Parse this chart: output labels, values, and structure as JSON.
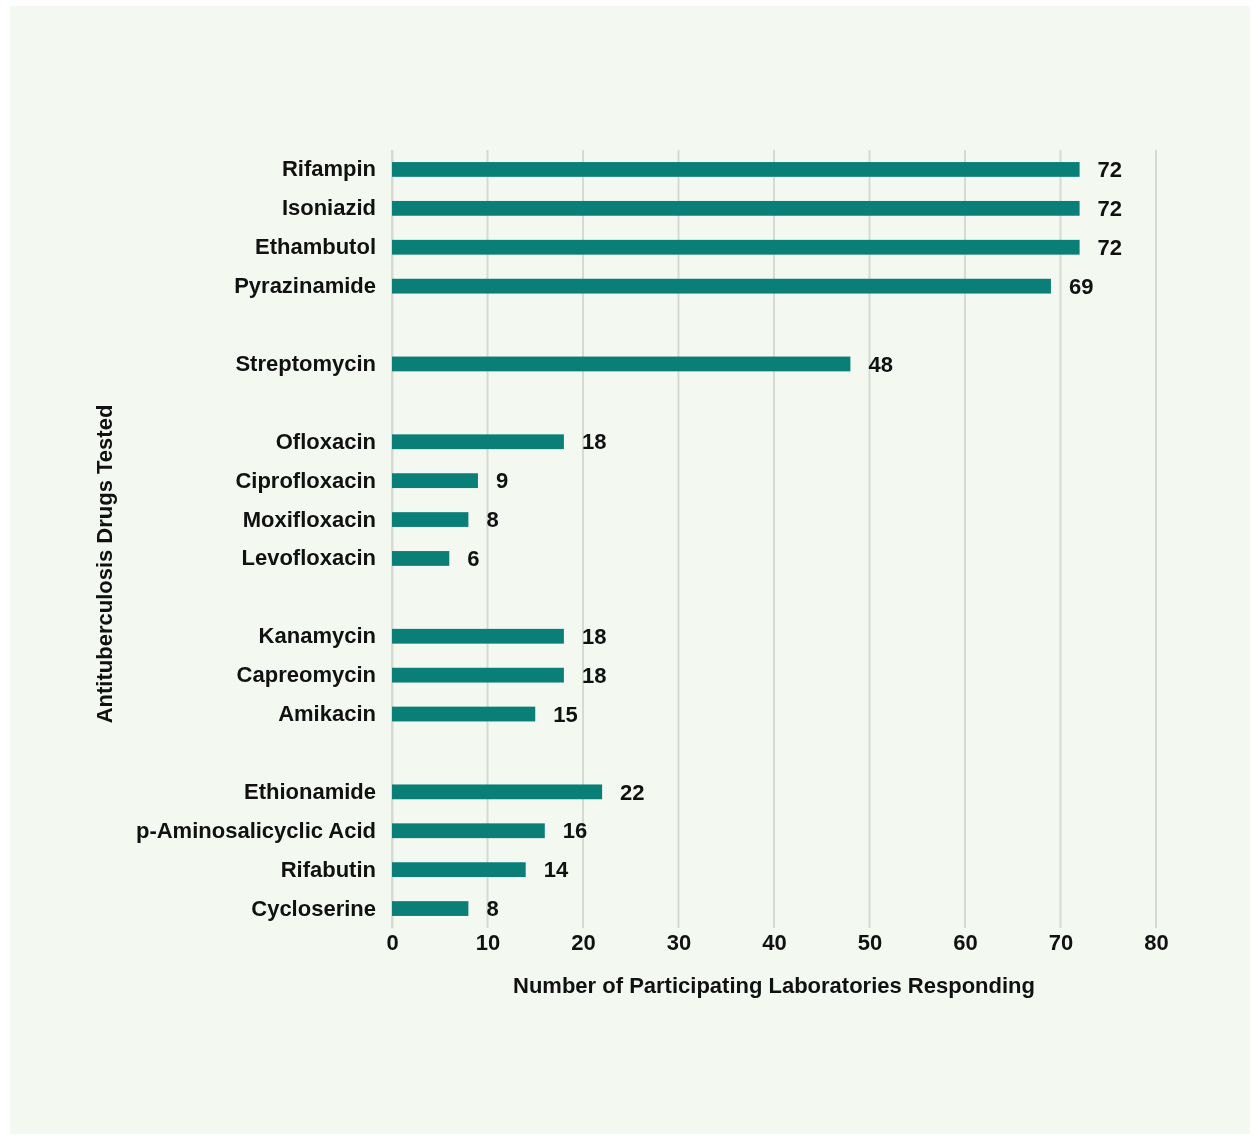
{
  "chart_data": {
    "type": "bar",
    "orientation": "horizontal",
    "xlabel": "Number of Participating Laboratories Responding",
    "ylabel": "Antituberculosis Drugs Tested",
    "categories": [
      "Rifampin",
      "Isoniazid",
      "Ethambutol",
      "Pyrazinamide",
      null,
      "Streptomycin",
      null,
      "Ofloxacin",
      "Ciprofloxacin",
      "Moxifloxacin",
      "Levofloxacin",
      null,
      "Kanamycin",
      "Capreomycin",
      "Amikacin",
      null,
      "Ethionamide",
      "p-Aminosalicyclic Acid",
      "Rifabutin",
      "Cycloserine"
    ],
    "values": [
      72,
      72,
      72,
      69,
      null,
      48,
      null,
      18,
      9,
      8,
      6,
      null,
      18,
      18,
      15,
      null,
      22,
      16,
      14,
      8
    ],
    "color": "#0a7f78",
    "xlim": [
      0,
      80
    ],
    "xticks": [
      0,
      10,
      20,
      30,
      40,
      50,
      60,
      70,
      80
    ],
    "grid": "x",
    "data_labels": true
  }
}
